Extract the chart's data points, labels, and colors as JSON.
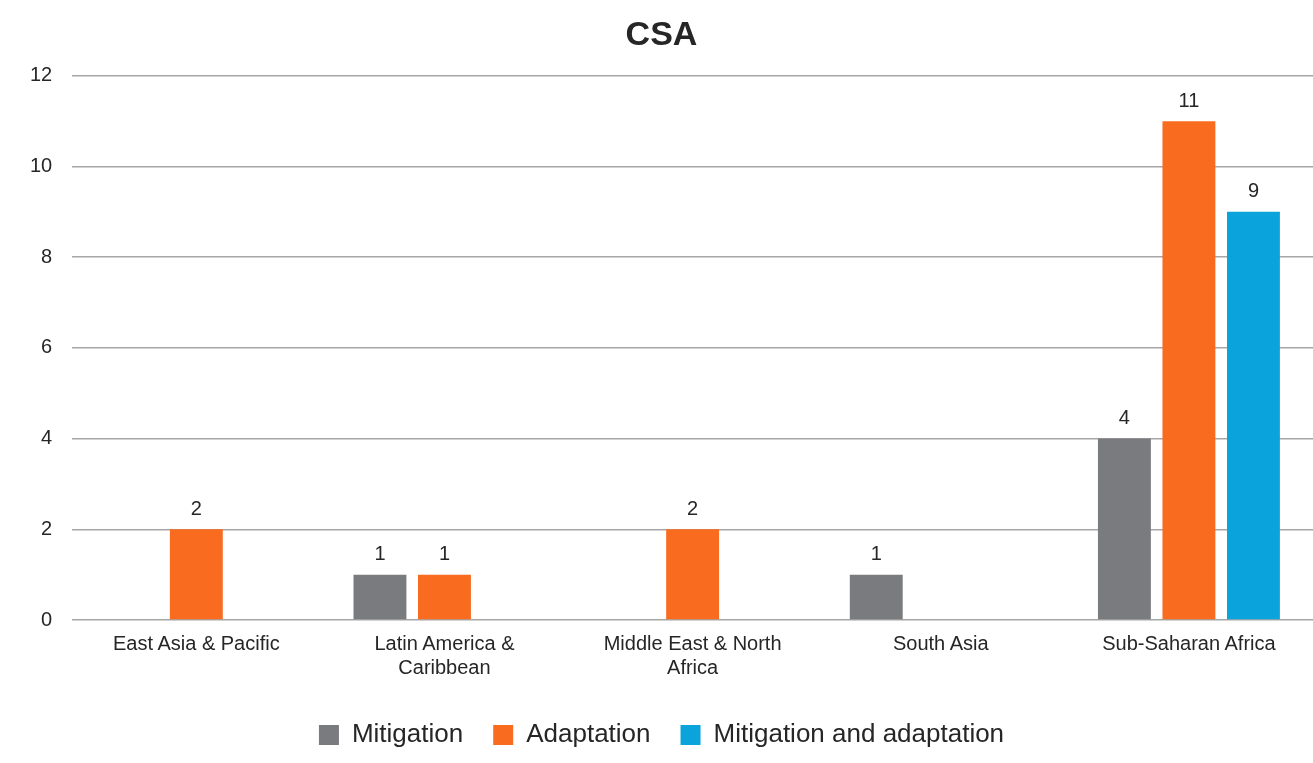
{
  "chart_data": {
    "type": "bar",
    "title": "CSA",
    "categories": [
      "East Asia & Pacific",
      "Latin America & Caribbean",
      "Middle East & North Africa",
      "South Asia",
      "Sub-Saharan Africa"
    ],
    "series": [
      {
        "name": "Mitigation",
        "color": "#7a7b7e",
        "values": [
          null,
          1,
          null,
          1,
          4
        ]
      },
      {
        "name": "Adaptation",
        "color": "#f96b1e",
        "values": [
          2,
          1,
          2,
          null,
          11
        ]
      },
      {
        "name": "Mitigation and adaptation",
        "color": "#0ba3dc",
        "values": [
          null,
          null,
          null,
          null,
          9
        ]
      }
    ],
    "ylim": [
      0,
      12
    ],
    "yticks": [
      0,
      2,
      4,
      6,
      8,
      10,
      12
    ],
    "grid": "y",
    "legend": "bottom",
    "data_labels": true
  }
}
